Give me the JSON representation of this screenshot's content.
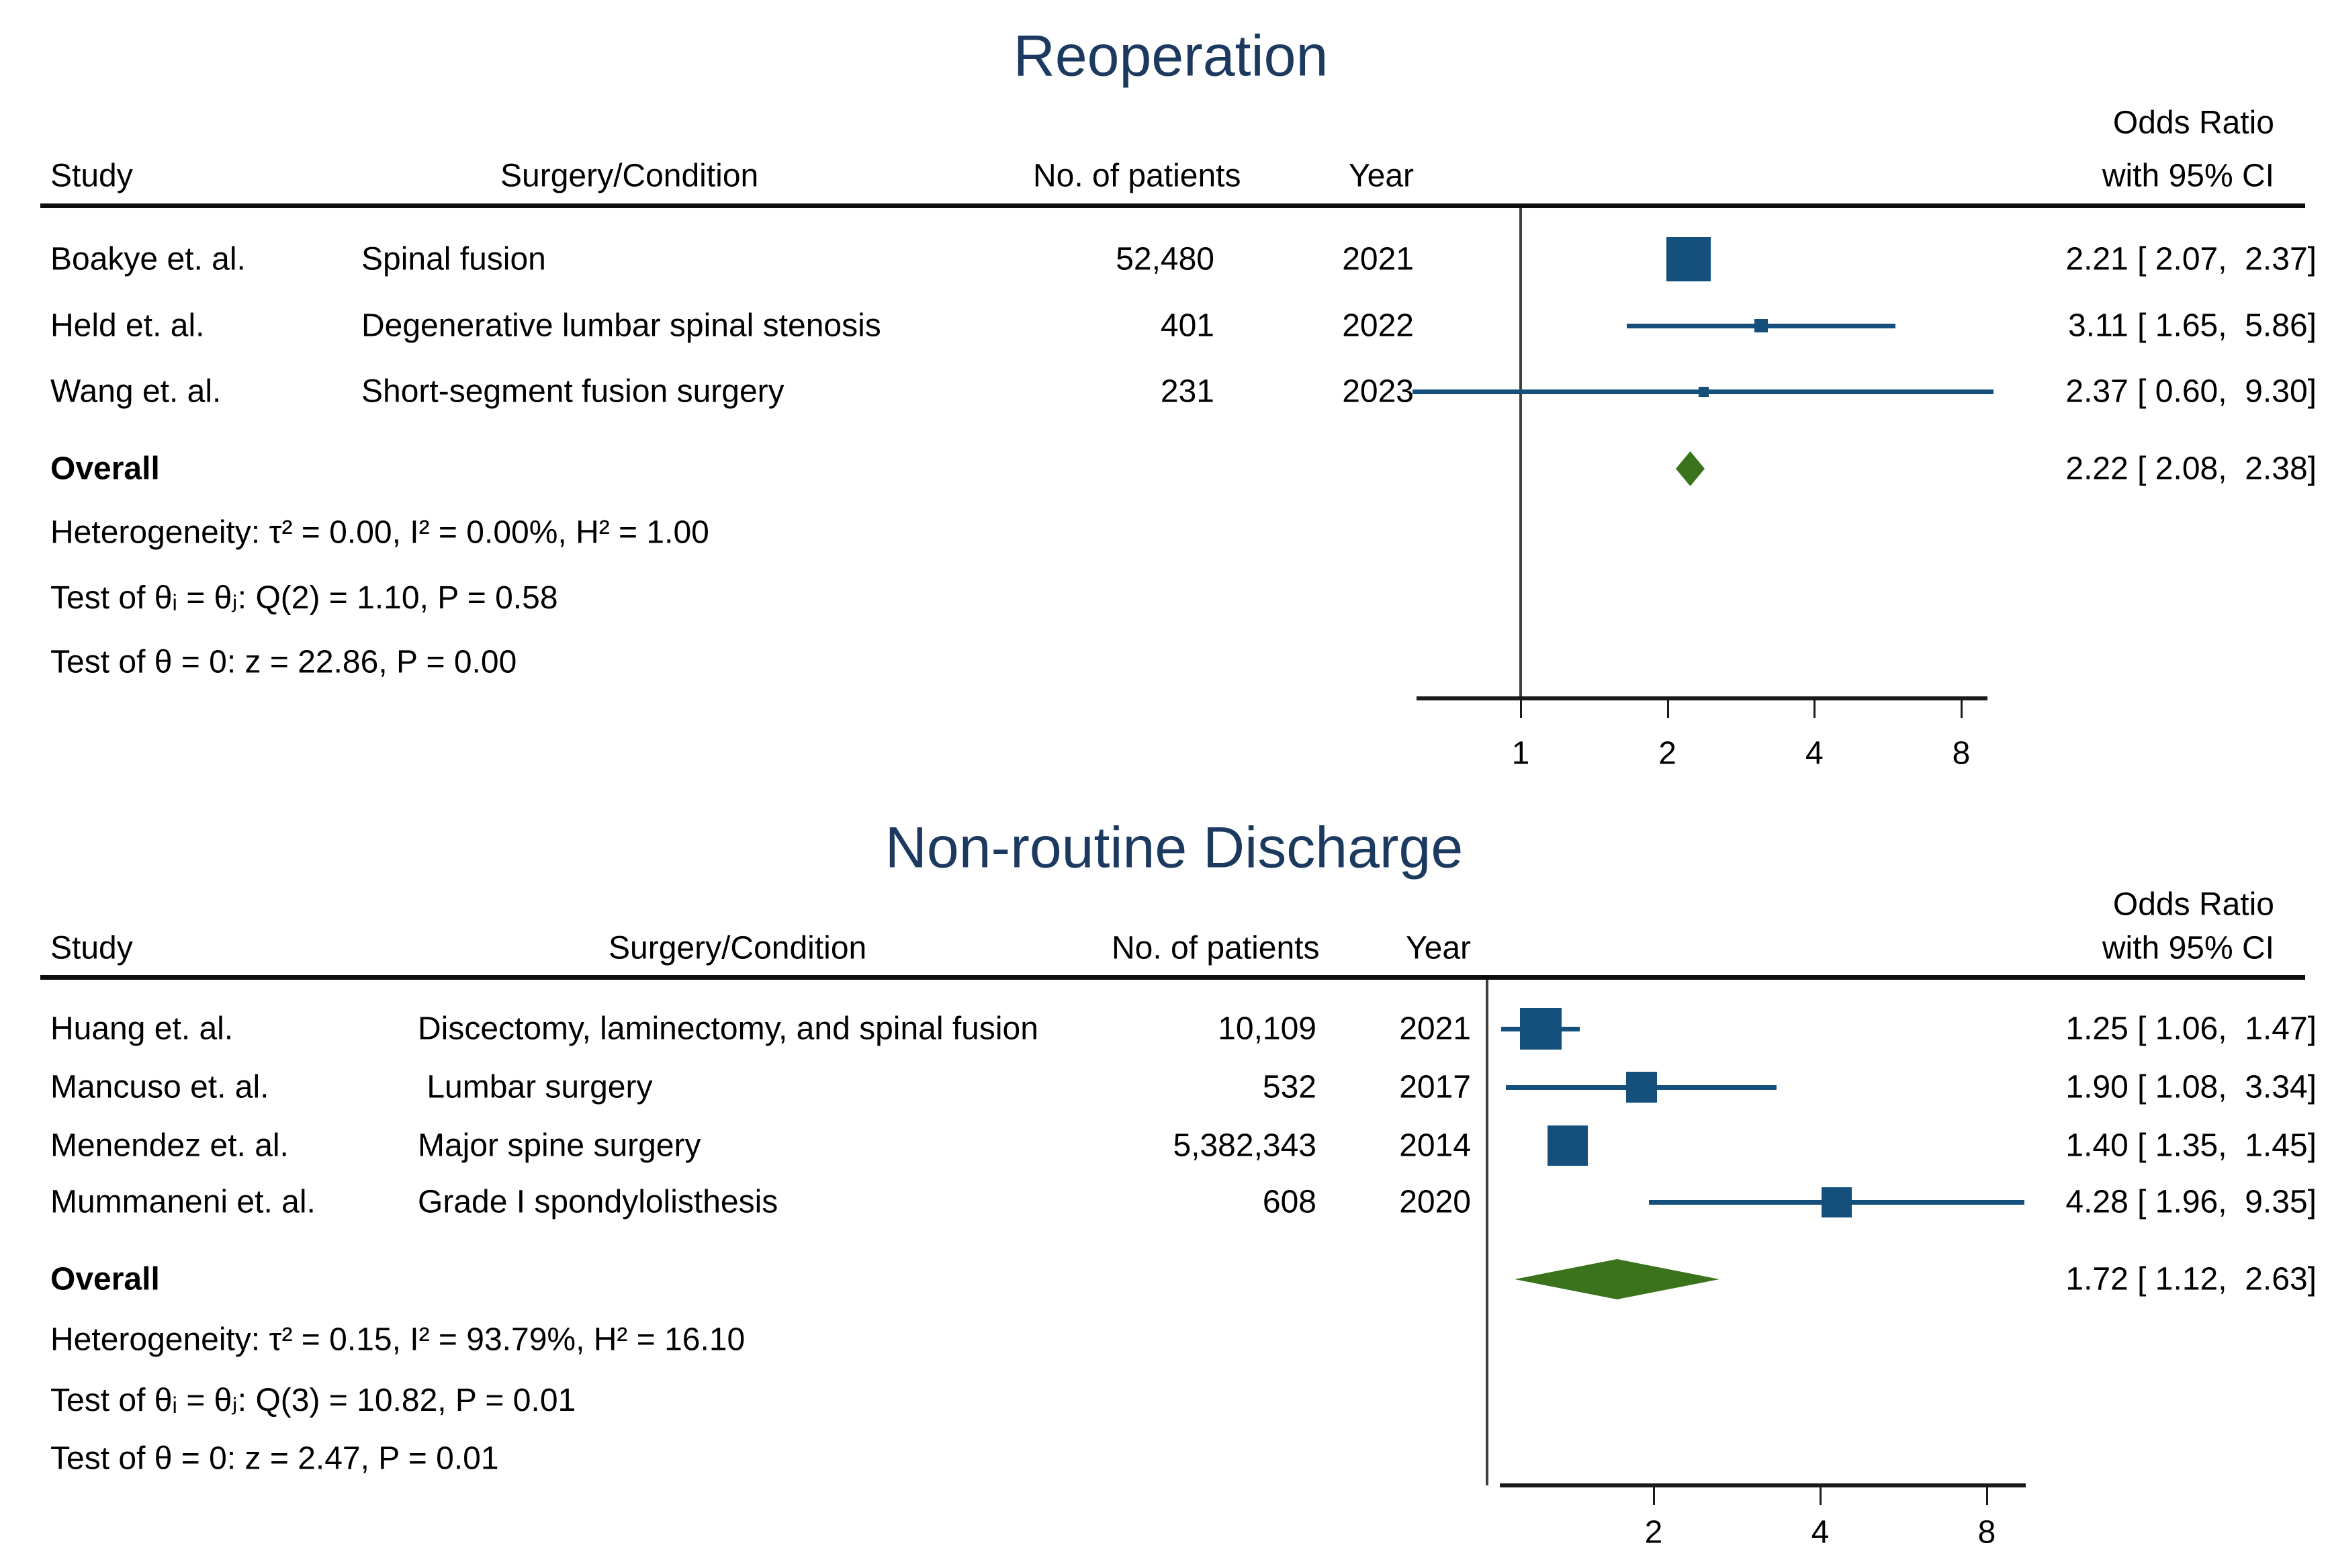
{
  "figure": {
    "panels": [
      {
        "title": "Reoperation",
        "or_header_line1": "Odds Ratio",
        "or_header_line2": "with 95% CI",
        "columns": {
          "study": "Study",
          "surgery": "Surgery/Condition",
          "patients": "No. of patients",
          "year": "Year"
        },
        "rows": [
          {
            "study": "Boakye et. al.",
            "surgery": "Spinal fusion",
            "patients": "52,480",
            "year": "2021",
            "or": 2.21,
            "ci_low": 2.07,
            "ci_high": 2.37,
            "or_text": "2.21 [ 2.07,  2.37]",
            "marker_px": 66
          },
          {
            "study": "Held et. al.",
            "surgery": "Degenerative lumbar spinal stenosis",
            "patients": "401",
            "year": "2022",
            "or": 3.11,
            "ci_low": 1.65,
            "ci_high": 5.86,
            "or_text": "3.11 [ 1.65,  5.86]",
            "marker_px": 20
          },
          {
            "study": "Wang et. al.",
            "surgery": "Short-segment fusion surgery",
            "patients": "231",
            "year": "2023",
            "or": 2.37,
            "ci_low": 0.6,
            "ci_high": 9.3,
            "or_text": "2.37 [ 0.60,  9.30]",
            "marker_px": 15
          }
        ],
        "overall": {
          "label": "Overall",
          "or": 2.22,
          "ci_low": 2.08,
          "ci_high": 2.38,
          "or_text": "2.22 [ 2.08,  2.38]"
        },
        "stats": [
          "Heterogeneity: τ² = 0.00, I² = 0.00%, H² = 1.00",
          "Test of θᵢ = θⱼ: Q(2) = 1.10, P = 0.58",
          "Test of θ = 0: z = 22.86, P = 0.00"
        ],
        "axis_ticks": [
          1,
          2,
          4,
          8
        ]
      },
      {
        "title": "Non-routine Discharge",
        "or_header_line1": "Odds Ratio",
        "or_header_line2": "with 95% CI",
        "columns": {
          "study": "Study",
          "surgery": "Surgery/Condition",
          "patients": "No. of patients",
          "year": "Year"
        },
        "rows": [
          {
            "study": "Huang et. al.",
            "surgery": "Discectomy, laminectomy, and spinal fusion",
            "patients": "10,109",
            "year": "2021",
            "or": 1.25,
            "ci_low": 1.06,
            "ci_high": 1.47,
            "or_text": "1.25 [ 1.06,  1.47]",
            "marker_px": 62
          },
          {
            "study": "Mancuso et. al.",
            "surgery": " Lumbar surgery",
            "patients": "532",
            "year": "2017",
            "or": 1.9,
            "ci_low": 1.08,
            "ci_high": 3.34,
            "or_text": "1.90 [ 1.08,  3.34]",
            "marker_px": 46
          },
          {
            "study": "Menendez et. al.",
            "surgery": "Major spine surgery",
            "patients": "5,382,343",
            "year": "2014",
            "or": 1.4,
            "ci_low": 1.35,
            "ci_high": 1.45,
            "or_text": "1.40 [ 1.35,  1.45]",
            "marker_px": 60
          },
          {
            "study": "Mummaneni et. al.",
            "surgery": "Grade I spondylolisthesis",
            "patients": "608",
            "year": "2020",
            "or": 4.28,
            "ci_low": 1.96,
            "ci_high": 9.35,
            "or_text": "4.28 [ 1.96,  9.35]",
            "marker_px": 45
          }
        ],
        "overall": {
          "label": "Overall",
          "or": 1.72,
          "ci_low": 1.12,
          "ci_high": 2.63,
          "or_text": "1.72 [ 1.12,  2.63]"
        },
        "stats": [
          "Heterogeneity: τ² = 0.15, I² = 93.79%, H² = 16.10",
          "Test of θᵢ = θⱼ: Q(3) = 10.82, P = 0.01",
          "Test of θ = 0: z = 2.47, P = 0.01"
        ],
        "axis_ticks": [
          2,
          4,
          8
        ]
      }
    ],
    "colors": {
      "marker_navy": "#15507d",
      "diamond_green": "#3a731c",
      "title_navy": "#1c3a60"
    }
  },
  "chart_data": [
    {
      "type": "forest",
      "title": "Reoperation",
      "x_scale": "log2",
      "x_ticks": [
        1,
        2,
        4,
        8
      ],
      "columns": [
        "Study",
        "Surgery/Condition",
        "No. of patients",
        "Year",
        "Odds Ratio with 95% CI"
      ],
      "studies": [
        {
          "study": "Boakye et. al.",
          "surgery_condition": "Spinal fusion",
          "n_patients": 52480,
          "year": 2021,
          "or": 2.21,
          "ci_low": 2.07,
          "ci_high": 2.37
        },
        {
          "study": "Held et. al.",
          "surgery_condition": "Degenerative lumbar spinal stenosis",
          "n_patients": 401,
          "year": 2022,
          "or": 3.11,
          "ci_low": 1.65,
          "ci_high": 5.86
        },
        {
          "study": "Wang et. al.",
          "surgery_condition": "Short-segment fusion surgery",
          "n_patients": 231,
          "year": 2023,
          "or": 2.37,
          "ci_low": 0.6,
          "ci_high": 9.3
        }
      ],
      "overall": {
        "or": 2.22,
        "ci_low": 2.08,
        "ci_high": 2.38
      },
      "heterogeneity": {
        "tau2": 0.0,
        "I2_pct": 0.0,
        "H2": 1.0
      },
      "test_theta_i_eq_theta_j": {
        "Q": 1.1,
        "df": 2,
        "P": 0.58
      },
      "test_theta_eq_0": {
        "z": 22.86,
        "P": 0.0
      }
    },
    {
      "type": "forest",
      "title": "Non-routine Discharge",
      "x_scale": "log2",
      "x_ticks": [
        2,
        4,
        8
      ],
      "columns": [
        "Study",
        "Surgery/Condition",
        "No. of patients",
        "Year",
        "Odds Ratio with 95% CI"
      ],
      "studies": [
        {
          "study": "Huang et. al.",
          "surgery_condition": "Discectomy, laminectomy, and spinal fusion",
          "n_patients": 10109,
          "year": 2021,
          "or": 1.25,
          "ci_low": 1.06,
          "ci_high": 1.47
        },
        {
          "study": "Mancuso et. al.",
          "surgery_condition": "Lumbar surgery",
          "n_patients": 532,
          "year": 2017,
          "or": 1.9,
          "ci_low": 1.08,
          "ci_high": 3.34
        },
        {
          "study": "Menendez et. al.",
          "surgery_condition": "Major spine surgery",
          "n_patients": 5382343,
          "year": 2014,
          "or": 1.4,
          "ci_low": 1.35,
          "ci_high": 1.45
        },
        {
          "study": "Mummaneni et. al.",
          "surgery_condition": "Grade I spondylolisthesis",
          "n_patients": 608,
          "year": 2020,
          "or": 4.28,
          "ci_low": 1.96,
          "ci_high": 9.35
        }
      ],
      "overall": {
        "or": 1.72,
        "ci_low": 1.12,
        "ci_high": 2.63
      },
      "heterogeneity": {
        "tau2": 0.15,
        "I2_pct": 93.79,
        "H2": 16.1
      },
      "test_theta_i_eq_theta_j": {
        "Q": 10.82,
        "df": 3,
        "P": 0.01
      },
      "test_theta_eq_0": {
        "z": 2.47,
        "P": 0.01
      }
    }
  ]
}
